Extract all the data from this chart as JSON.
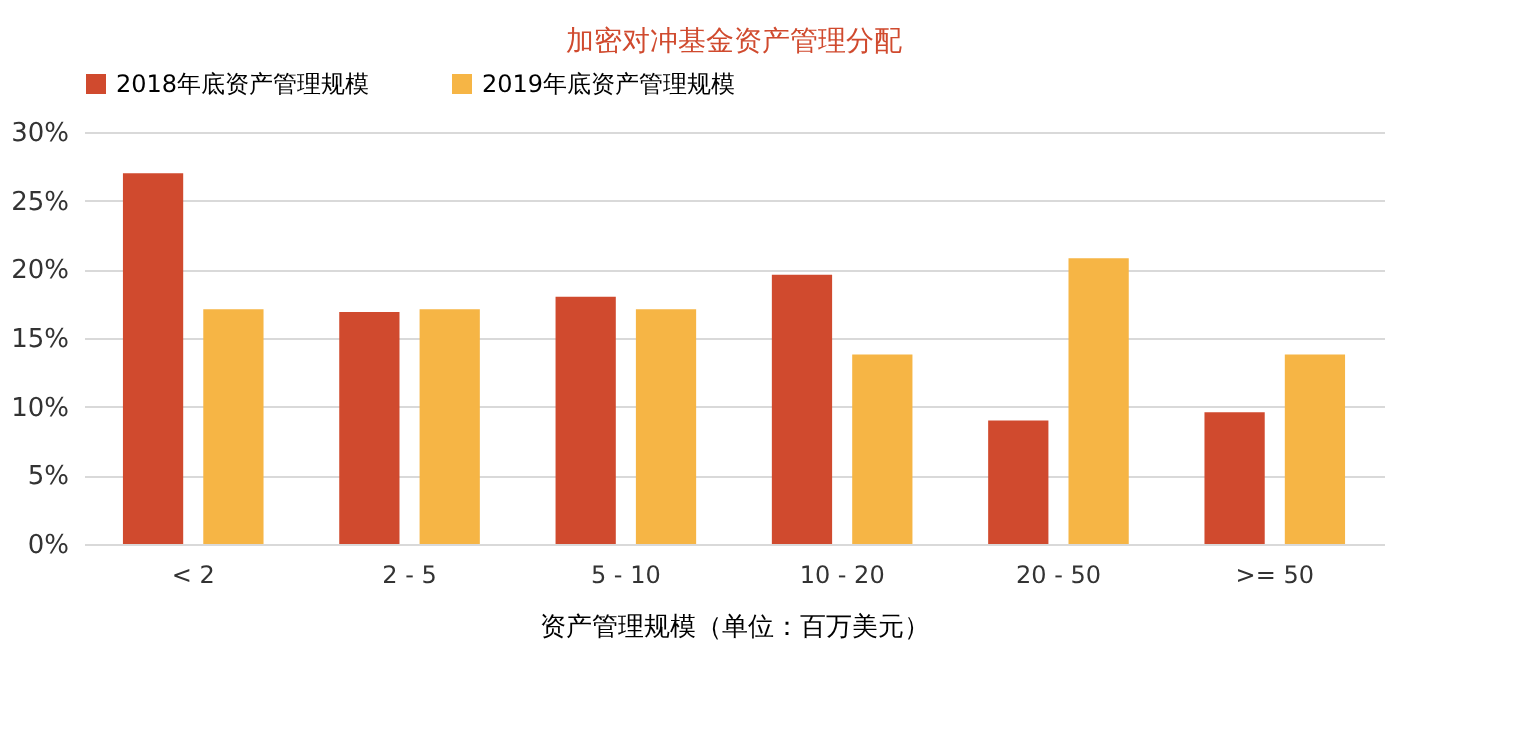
{
  "chart_data": {
    "type": "bar",
    "title": "加密对冲基金资产管理分配",
    "xlabel": "资产管理规模（单位：百万美元）",
    "categories": [
      "< 2",
      "2 - 5",
      "5 - 10",
      "10 - 20",
      "20 - 50",
      ">= 50"
    ],
    "series": [
      {
        "name": "2018年底资产管理规模",
        "color": "#d04a2e",
        "values": [
          27.0,
          16.9,
          18.0,
          19.6,
          9.0,
          9.6
        ]
      },
      {
        "name": "2019年底资产管理规模",
        "color": "#f6b545",
        "values": [
          17.1,
          17.1,
          17.1,
          13.8,
          20.8,
          13.8
        ]
      }
    ],
    "ylim": [
      0,
      30
    ],
    "yticks": [
      {
        "value": 0,
        "label": "0%"
      },
      {
        "value": 5,
        "label": "5%"
      },
      {
        "value": 10,
        "label": "10%"
      },
      {
        "value": 15,
        "label": "15%"
      },
      {
        "value": 20,
        "label": "20%"
      },
      {
        "value": 25,
        "label": "25%"
      },
      {
        "value": 30,
        "label": "30%"
      }
    ],
    "grid": "y",
    "legend": "top"
  }
}
